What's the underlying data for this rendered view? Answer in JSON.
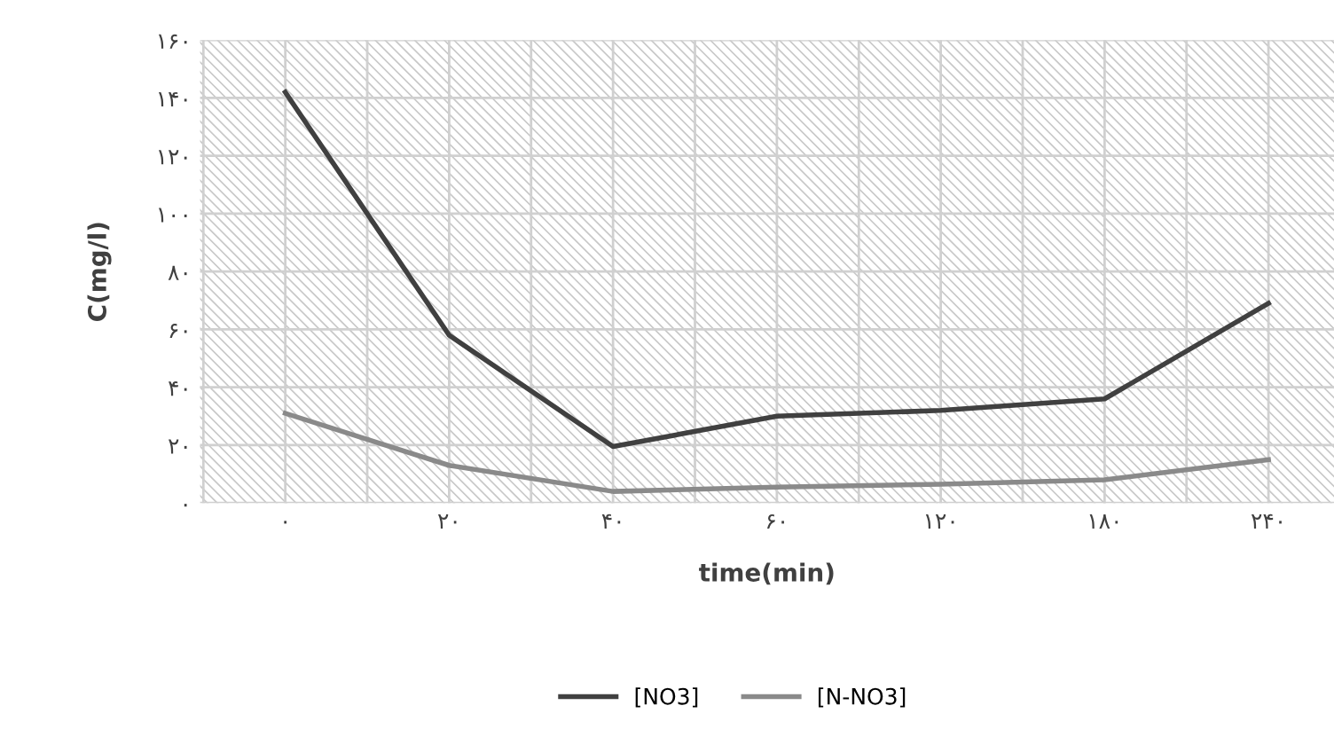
{
  "chart_data": {
    "type": "line",
    "xlabel": "time(min)",
    "ylabel": "C(mg/l)",
    "categories": [
      "۰",
      "۲۰",
      "۴۰",
      "۶۰",
      "۱۲۰",
      "۱۸۰",
      "۲۴۰"
    ],
    "series": [
      {
        "name": "[NO3]",
        "color": "#404040",
        "values": [
          142,
          58,
          19.5,
          30,
          32,
          36,
          69
        ]
      },
      {
        "name": "[N-NO3]",
        "color": "#8a8a8a",
        "values": [
          31,
          13,
          4,
          5.5,
          6.5,
          8,
          15
        ]
      }
    ],
    "ylim": [
      0,
      160
    ],
    "yticks": [
      {
        "value": 0,
        "label": "۰"
      },
      {
        "value": 20,
        "label": "۲۰"
      },
      {
        "value": 40,
        "label": "۴۰"
      },
      {
        "value": 60,
        "label": "۶۰"
      },
      {
        "value": 80,
        "label": "۸۰"
      },
      {
        "value": 100,
        "label": "۱۰۰"
      },
      {
        "value": 120,
        "label": "۱۲۰"
      },
      {
        "value": 140,
        "label": "۱۴۰"
      },
      {
        "value": 160,
        "label": "۱۶۰"
      }
    ],
    "grid": true,
    "legend": "bottom",
    "marker": "none",
    "line_style": "solid"
  }
}
